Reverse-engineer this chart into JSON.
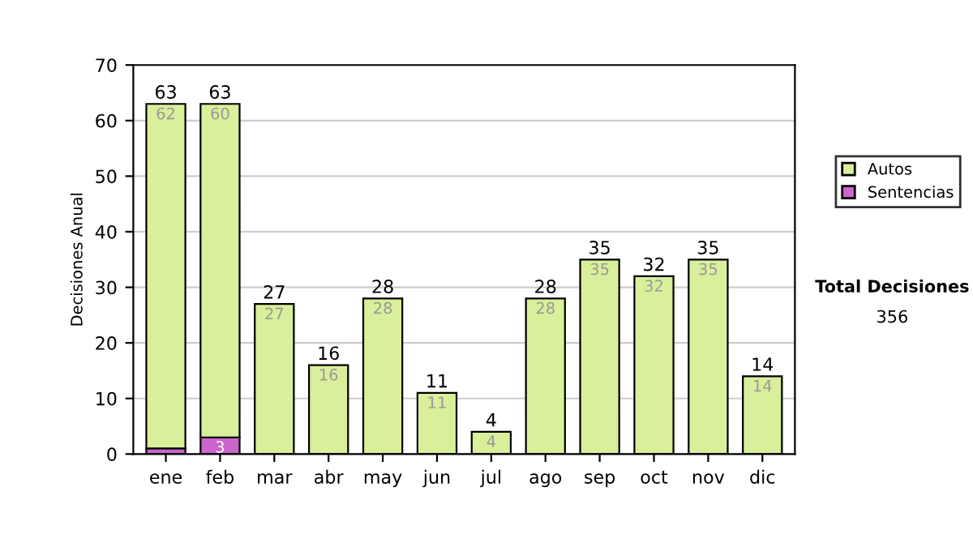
{
  "chart_data": {
    "type": "bar",
    "stacked": true,
    "ylabel": "Decisiones Anual",
    "categories": [
      "ene",
      "feb",
      "mar",
      "abr",
      "may",
      "jun",
      "jul",
      "ago",
      "sep",
      "oct",
      "nov",
      "dic"
    ],
    "series": [
      {
        "name": "Sentencias",
        "color": "#cc66cc",
        "values": [
          1,
          3,
          0,
          0,
          0,
          0,
          0,
          0,
          0,
          0,
          0,
          0
        ],
        "value_labels": [
          null,
          "3",
          null,
          null,
          null,
          null,
          null,
          null,
          null,
          null,
          null,
          null
        ]
      },
      {
        "name": "Autos",
        "color": "#d9ef9b",
        "values": [
          62,
          60,
          27,
          16,
          28,
          11,
          4,
          28,
          35,
          32,
          35,
          14
        ],
        "value_labels": [
          "62",
          "60",
          "27",
          "16",
          "28",
          "11",
          "4",
          "28",
          "35",
          "32",
          "35",
          "14"
        ]
      }
    ],
    "totals": [
      "63",
      "63",
      "27",
      "16",
      "28",
      "11",
      "4",
      "28",
      "35",
      "32",
      "35",
      "14"
    ],
    "ylim": [
      0,
      70
    ],
    "yticks": [
      0,
      10,
      20,
      30,
      40,
      50,
      60,
      70
    ],
    "grid": "y",
    "legend": "right",
    "annotations": [
      "Total Decisiones",
      "356"
    ]
  }
}
